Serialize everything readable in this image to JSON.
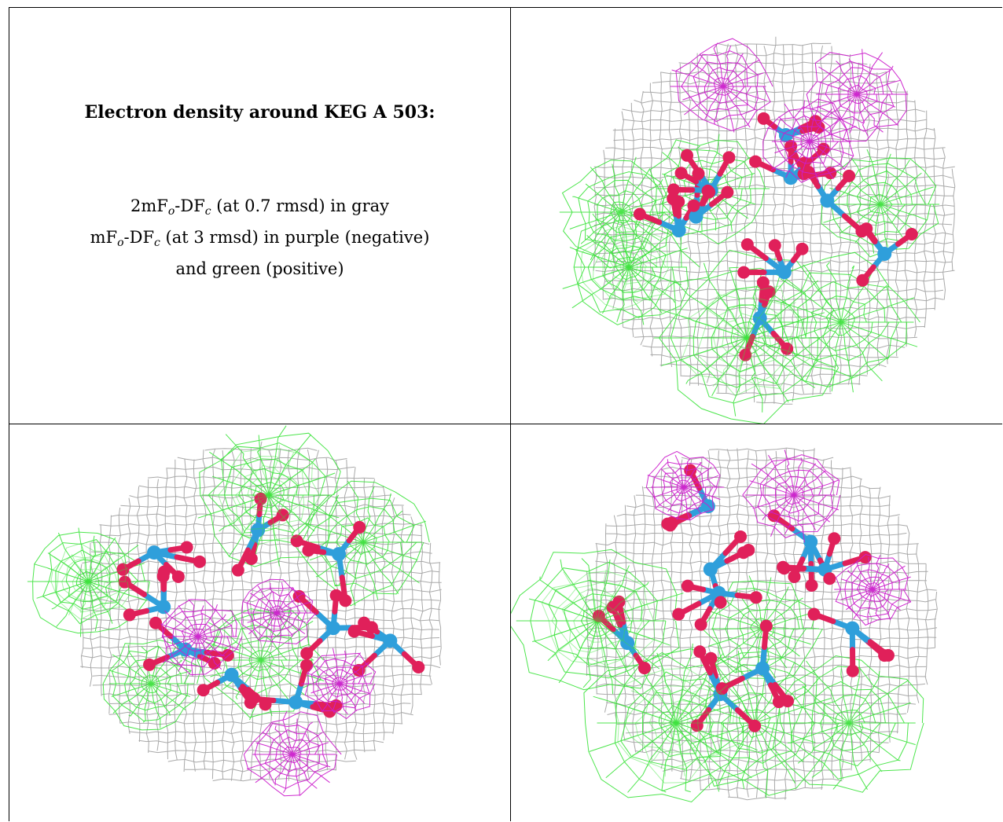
{
  "title": "Electron density around KEG A 503:",
  "legend": {
    "line1": {
      "pre": "2mF",
      "sub1": "o",
      "mid": "-DF",
      "sub2": "c",
      "post": " (at 0.7 rmsd) in gray"
    },
    "line2": {
      "pre": "mF",
      "sub1": "o",
      "mid": "-DF",
      "sub2": "c",
      "post": " (at 3 rmsd) in purple (negative)"
    },
    "line3": "and green (positive)"
  },
  "colors": {
    "map_2fofc": "#a9a9a9",
    "map_fofc_negative": "#cc1fcc",
    "map_fofc_positive": "#39e339",
    "atom_oxygen": "#e0205a",
    "atom_metal": "#2f9fdb",
    "border": "#000000"
  },
  "views": [
    {
      "name": "view-top-right",
      "seed": 11
    },
    {
      "name": "view-bottom-left",
      "seed": 29
    },
    {
      "name": "view-bottom-right",
      "seed": 47
    }
  ]
}
